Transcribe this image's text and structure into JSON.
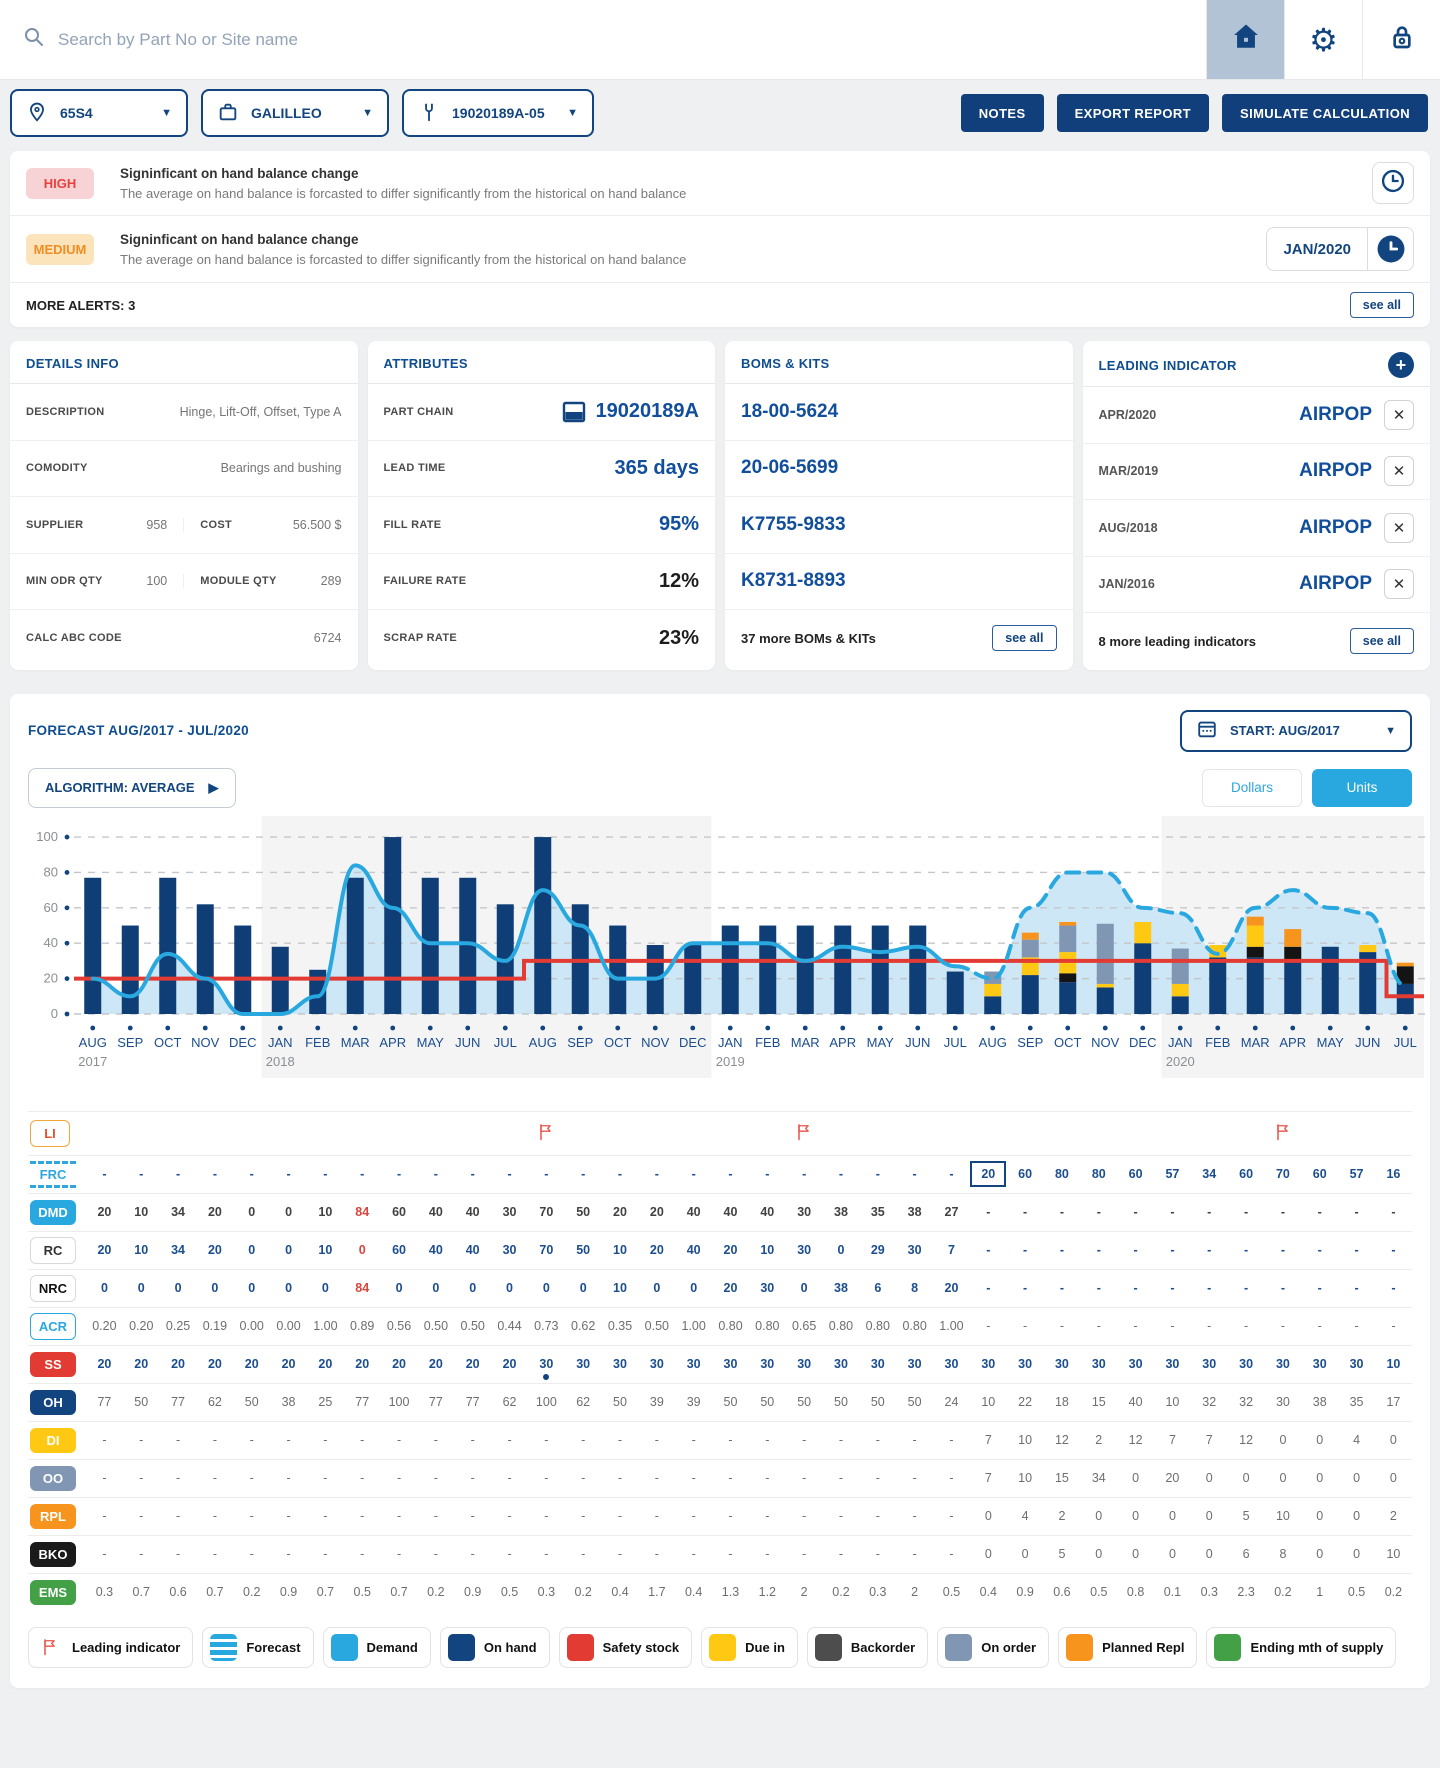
{
  "colors": {
    "navy": "#12457f",
    "blue_header": "#0e4d8f",
    "value_navy": "#114e9b",
    "cyan": "#29a8e0",
    "red": "#e23b33",
    "yellow": "#ffc913",
    "grey_blue": "#8096b2",
    "orange": "#f7941d",
    "black": "#1a1a1a",
    "green": "#43a047",
    "high_bg": "#f7d3d6",
    "high_text": "#e8403c",
    "medium_bg": "#fbe3bb",
    "medium_text": "#ef8e22"
  },
  "topbar": {
    "search_placeholder": "Search by Part No or Site name"
  },
  "filters": {
    "site": "65S4",
    "supplier": "GALILLEO",
    "part": "19020189A-05"
  },
  "actions": {
    "notes": "NOTES",
    "export": "EXPORT REPORT",
    "simulate": "SIMULATE CALCULATION"
  },
  "alerts": {
    "items": [
      {
        "severity": "HIGH",
        "title": "Signinficant on hand balance change",
        "description": "The average on hand balance is forcasted to differ significantly from the historical on hand balance",
        "date": ""
      },
      {
        "severity": "MEDIUM",
        "title": "Signinficant on hand balance change",
        "description": "The average on hand balance is forcasted to differ significantly from the historical on hand balance",
        "date": "JAN/2020"
      }
    ],
    "more_label": "MORE ALERTS: 3",
    "see_all": "see all"
  },
  "details_info": {
    "title": "DETAILS INFO",
    "rows": [
      {
        "type": "kv",
        "label": "DESCRIPTION",
        "value": "Hinge, Lift-Off, Offset, Type A"
      },
      {
        "type": "kv",
        "label": "COMODITY",
        "value": "Bearings and bushing"
      },
      {
        "type": "split",
        "left": {
          "label": "SUPPLIER",
          "value": "958"
        },
        "right": {
          "label": "COST",
          "value": "56.500 $"
        }
      },
      {
        "type": "split",
        "left": {
          "label": "MIN ODR QTY",
          "value": "100"
        },
        "right": {
          "label": "MODULE QTY",
          "value": "289"
        }
      },
      {
        "type": "kv",
        "label": "CALC ABC CODE",
        "value": "6724"
      }
    ]
  },
  "attributes": {
    "title": "ATTRIBUTES",
    "rows": [
      {
        "label": "PART CHAIN",
        "value": "19020189A",
        "icon": "part-chain",
        "dark": false
      },
      {
        "label": "LEAD TIME",
        "value": "365 days",
        "dark": false
      },
      {
        "label": "FILL RATE",
        "value": "95%",
        "dark": false
      },
      {
        "label": "FAILURE RATE",
        "value": "12%",
        "dark": true
      },
      {
        "label": "SCRAP RATE",
        "value": "23%",
        "dark": true
      }
    ]
  },
  "boms": {
    "title": "BOMS & KITS",
    "items": [
      "18-00-5624",
      "20-06-5699",
      "K7755-9833",
      "K8731-8893"
    ],
    "more": "37 more BOMs & KITs",
    "see_all": "see all"
  },
  "leading_indicator": {
    "title": "LEADING INDICATOR",
    "items": [
      {
        "date": "APR/2020",
        "value": "AIRPOP"
      },
      {
        "date": "MAR/2019",
        "value": "AIRPOP"
      },
      {
        "date": "AUG/2018",
        "value": "AIRPOP"
      },
      {
        "date": "JAN/2016",
        "value": "AIRPOP"
      }
    ],
    "more": "8 more leading indicators",
    "see_all": "see all"
  },
  "forecast": {
    "title": "FORECAST AUG/2017 - JUL/2020",
    "start": "START: AUG/2017",
    "algorithm": "ALGORITHM: AVERAGE",
    "dollars": "Dollars",
    "units": "Units"
  },
  "chart_data": {
    "type": "bar+line",
    "title": "FORECAST AUG/2017 - JUL/2020",
    "months": [
      "AUG",
      "SEP",
      "OCT",
      "NOV",
      "DEC",
      "JAN",
      "FEB",
      "MAR",
      "APR",
      "MAY",
      "JUN",
      "JUL",
      "AUG",
      "SEP",
      "OCT",
      "NOV",
      "DEC",
      "JAN",
      "FEB",
      "MAR",
      "APR",
      "MAY",
      "JUN",
      "JUL",
      "AUG",
      "SEP",
      "OCT",
      "NOV",
      "DEC",
      "JAN",
      "FEB",
      "MAR",
      "APR",
      "MAY",
      "JUN",
      "JUL"
    ],
    "year_labels": {
      "0": "2017",
      "5": "2018",
      "17": "2019",
      "29": "2020"
    },
    "year_bands": [
      [
        0,
        4,
        "#ffffff"
      ],
      [
        5,
        16,
        "#f4f4f5"
      ],
      [
        17,
        28,
        "#ffffff"
      ],
      [
        29,
        35,
        "#f4f4f5"
      ]
    ],
    "ylim": [
      0,
      100
    ],
    "yticks": [
      0,
      20,
      40,
      60,
      80,
      100
    ],
    "forecast_start_index": 24,
    "series": {
      "on_hand": [
        77,
        50,
        77,
        62,
        50,
        38,
        25,
        77,
        100,
        77,
        77,
        62,
        100,
        62,
        50,
        39,
        39,
        50,
        50,
        50,
        50,
        50,
        50,
        24,
        10,
        22,
        18,
        15,
        40,
        10,
        32,
        32,
        30,
        38,
        35,
        17
      ],
      "demand": [
        20,
        10,
        34,
        20,
        0,
        0,
        10,
        84,
        60,
        40,
        40,
        30,
        70,
        50,
        20,
        20,
        40,
        40,
        40,
        30,
        38,
        35,
        38,
        27
      ],
      "forecast": [
        20,
        60,
        80,
        80,
        60,
        57,
        34,
        60,
        70,
        60,
        57,
        16
      ],
      "safety_stock": [
        20,
        20,
        20,
        20,
        20,
        20,
        20,
        20,
        20,
        20,
        20,
        20,
        30,
        30,
        30,
        30,
        30,
        30,
        30,
        30,
        30,
        30,
        30,
        30,
        30,
        30,
        30,
        30,
        30,
        30,
        30,
        30,
        30,
        30,
        30,
        10
      ],
      "due_in": [
        7,
        10,
        12,
        2,
        12,
        7,
        7,
        12,
        0,
        0,
        4,
        0
      ],
      "on_order": [
        7,
        10,
        15,
        34,
        0,
        20,
        0,
        0,
        0,
        0,
        0,
        0
      ],
      "planned_repl": [
        0,
        4,
        2,
        0,
        0,
        0,
        0,
        5,
        10,
        0,
        0,
        2
      ],
      "backorder": [
        0,
        0,
        5,
        0,
        0,
        0,
        0,
        6,
        8,
        0,
        0,
        10
      ]
    }
  },
  "table": {
    "rows": [
      {
        "key": "LI",
        "label": "LI",
        "badge": "li",
        "type": "flags",
        "flags": [
          12,
          19,
          32
        ]
      },
      {
        "key": "FRC",
        "label": "FRC",
        "badge": "frc",
        "value_class": "navy",
        "boxed_index": 24,
        "values": [
          "-",
          "-",
          "-",
          "-",
          "-",
          "-",
          "-",
          "-",
          "-",
          "-",
          "-",
          "-",
          "-",
          "-",
          "-",
          "-",
          "-",
          "-",
          "-",
          "-",
          "-",
          "-",
          "-",
          "-",
          "20",
          "60",
          "80",
          "80",
          "60",
          "57",
          "34",
          "60",
          "70",
          "60",
          "57",
          "16"
        ]
      },
      {
        "key": "DMD",
        "label": "DMD",
        "badge": "dmd",
        "value_class": "dark",
        "red_indices": [
          7
        ],
        "values": [
          "20",
          "10",
          "34",
          "20",
          "0",
          "0",
          "10",
          "84",
          "60",
          "40",
          "40",
          "30",
          "70",
          "50",
          "20",
          "20",
          "40",
          "40",
          "40",
          "30",
          "38",
          "35",
          "38",
          "27",
          "-",
          "-",
          "-",
          "-",
          "-",
          "-",
          "-",
          "-",
          "-",
          "-",
          "-",
          "-"
        ]
      },
      {
        "key": "RC",
        "label": "RC",
        "badge": "rc",
        "value_class": "navy",
        "red_indices": [
          7
        ],
        "values": [
          "20",
          "10",
          "34",
          "20",
          "0",
          "0",
          "10",
          "0",
          "60",
          "40",
          "40",
          "30",
          "70",
          "50",
          "10",
          "20",
          "40",
          "20",
          "10",
          "30",
          "0",
          "29",
          "30",
          "7",
          "-",
          "-",
          "-",
          "-",
          "-",
          "-",
          "-",
          "-",
          "-",
          "-",
          "-",
          "-"
        ]
      },
      {
        "key": "NRC",
        "label": "NRC",
        "badge": "nrc",
        "value_class": "navy",
        "red_indices": [
          7
        ],
        "values": [
          "0",
          "0",
          "0",
          "0",
          "0",
          "0",
          "0",
          "84",
          "0",
          "0",
          "0",
          "0",
          "0",
          "0",
          "10",
          "0",
          "0",
          "20",
          "30",
          "0",
          "38",
          "6",
          "8",
          "20",
          "-",
          "-",
          "-",
          "-",
          "-",
          "-",
          "-",
          "-",
          "-",
          "-",
          "-",
          "-"
        ]
      },
      {
        "key": "ACR",
        "label": "ACR",
        "badge": "acr",
        "value_class": "grey",
        "values": [
          "0.20",
          "0.20",
          "0.25",
          "0.19",
          "0.00",
          "0.00",
          "1.00",
          "0.89",
          "0.56",
          "0.50",
          "0.50",
          "0.44",
          "0.73",
          "0.62",
          "0.35",
          "0.50",
          "1.00",
          "0.80",
          "0.80",
          "0.65",
          "0.80",
          "0.80",
          "0.80",
          "1.00",
          "-",
          "-",
          "-",
          "-",
          "-",
          "-",
          "-",
          "-",
          "-",
          "-",
          "-",
          "-"
        ]
      },
      {
        "key": "SS",
        "label": "SS",
        "badge": "ss",
        "value_class": "navy",
        "dot_index": 12,
        "values": [
          "20",
          "20",
          "20",
          "20",
          "20",
          "20",
          "20",
          "20",
          "20",
          "20",
          "20",
          "20",
          "30",
          "30",
          "30",
          "30",
          "30",
          "30",
          "30",
          "30",
          "30",
          "30",
          "30",
          "30",
          "30",
          "30",
          "30",
          "30",
          "30",
          "30",
          "30",
          "30",
          "30",
          "30",
          "30",
          "10"
        ]
      },
      {
        "key": "OH",
        "label": "OH",
        "badge": "oh",
        "value_class": "grey",
        "values": [
          "77",
          "50",
          "77",
          "62",
          "50",
          "38",
          "25",
          "77",
          "100",
          "77",
          "77",
          "62",
          "100",
          "62",
          "50",
          "39",
          "39",
          "50",
          "50",
          "50",
          "50",
          "50",
          "50",
          "24",
          "10",
          "22",
          "18",
          "15",
          "40",
          "10",
          "32",
          "32",
          "30",
          "38",
          "35",
          "17"
        ]
      },
      {
        "key": "DI",
        "label": "DI",
        "badge": "di",
        "value_class": "grey",
        "values": [
          "-",
          "-",
          "-",
          "-",
          "-",
          "-",
          "-",
          "-",
          "-",
          "-",
          "-",
          "-",
          "-",
          "-",
          "-",
          "-",
          "-",
          "-",
          "-",
          "-",
          "-",
          "-",
          "-",
          "-",
          "7",
          "10",
          "12",
          "2",
          "12",
          "7",
          "7",
          "12",
          "0",
          "0",
          "4",
          "0"
        ]
      },
      {
        "key": "OO",
        "label": "OO",
        "badge": "oo",
        "value_class": "grey",
        "values": [
          "-",
          "-",
          "-",
          "-",
          "-",
          "-",
          "-",
          "-",
          "-",
          "-",
          "-",
          "-",
          "-",
          "-",
          "-",
          "-",
          "-",
          "-",
          "-",
          "-",
          "-",
          "-",
          "-",
          "-",
          "7",
          "10",
          "15",
          "34",
          "0",
          "20",
          "0",
          "0",
          "0",
          "0",
          "0",
          "0"
        ]
      },
      {
        "key": "RPL",
        "label": "RPL",
        "badge": "rpl",
        "value_class": "grey",
        "values": [
          "-",
          "-",
          "-",
          "-",
          "-",
          "-",
          "-",
          "-",
          "-",
          "-",
          "-",
          "-",
          "-",
          "-",
          "-",
          "-",
          "-",
          "-",
          "-",
          "-",
          "-",
          "-",
          "-",
          "-",
          "0",
          "4",
          "2",
          "0",
          "0",
          "0",
          "0",
          "5",
          "10",
          "0",
          "0",
          "2"
        ]
      },
      {
        "key": "BKO",
        "label": "BKO",
        "badge": "bko",
        "value_class": "grey",
        "values": [
          "-",
          "-",
          "-",
          "-",
          "-",
          "-",
          "-",
          "-",
          "-",
          "-",
          "-",
          "-",
          "-",
          "-",
          "-",
          "-",
          "-",
          "-",
          "-",
          "-",
          "-",
          "-",
          "-",
          "-",
          "0",
          "0",
          "5",
          "0",
          "0",
          "0",
          "0",
          "6",
          "8",
          "0",
          "0",
          "10"
        ]
      },
      {
        "key": "EMS",
        "label": "EMS",
        "badge": "ems",
        "value_class": "grey",
        "values": [
          "0.3",
          "0.7",
          "0.6",
          "0.7",
          "0.2",
          "0.9",
          "0.7",
          "0.5",
          "0.7",
          "0.2",
          "0.9",
          "0.5",
          "0.3",
          "0.2",
          "0.4",
          "1.7",
          "0.4",
          "1.3",
          "1.2",
          "2",
          "0.2",
          "0.3",
          "2",
          "0.5",
          "0.4",
          "0.9",
          "0.6",
          "0.5",
          "0.8",
          "0.1",
          "0.3",
          "2.3",
          "0.2",
          "1",
          "0.5",
          "0.2"
        ]
      }
    ]
  },
  "legend": [
    {
      "label": "Leading indicator",
      "chip": "flag"
    },
    {
      "label": "Forecast",
      "chip": "forecast"
    },
    {
      "label": "Demand",
      "chip": "#29a8e0"
    },
    {
      "label": "On hand",
      "chip": "#12457f"
    },
    {
      "label": "Safety stock",
      "chip": "#e23b33"
    },
    {
      "label": "Due in",
      "chip": "#ffc913"
    },
    {
      "label": "Backorder",
      "chip": "#4d4d4d"
    },
    {
      "label": "On order",
      "chip": "#8096b2"
    },
    {
      "label": "Planned Repl",
      "chip": "#f7941d"
    },
    {
      "label": "Ending mth of supply",
      "chip": "#43a047"
    }
  ]
}
